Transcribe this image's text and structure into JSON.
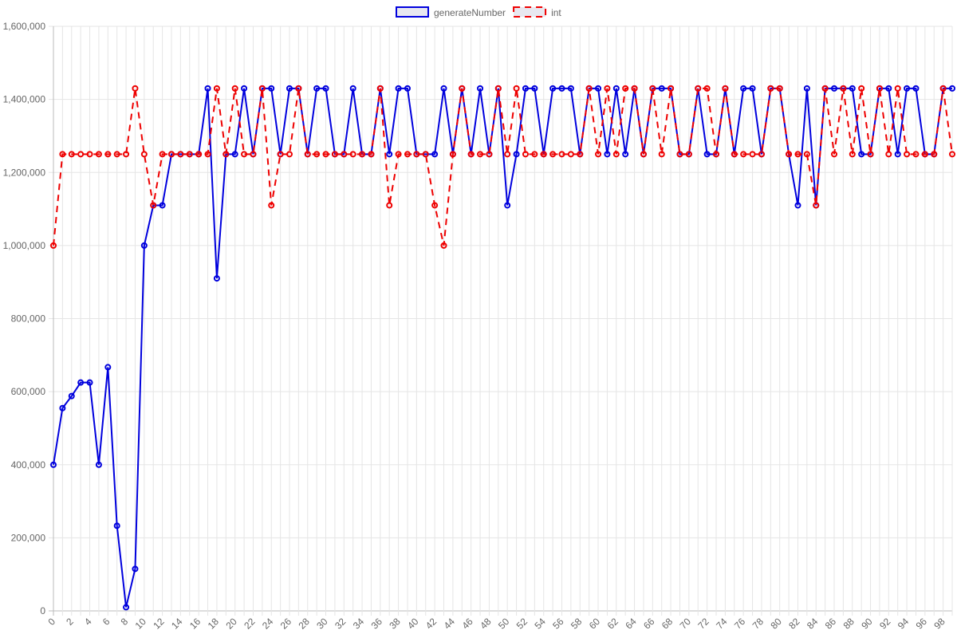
{
  "chart_data": {
    "type": "line",
    "categories": [
      "0",
      null,
      "2",
      null,
      "4",
      null,
      "6",
      null,
      "8",
      null,
      "10",
      null,
      "12",
      null,
      "14",
      null,
      "16",
      null,
      "18",
      null,
      "20",
      null,
      "22",
      null,
      "24",
      null,
      "26",
      null,
      "28",
      null,
      "30",
      null,
      "32",
      null,
      "34",
      null,
      "36",
      null,
      "38",
      null,
      "40",
      null,
      "42",
      null,
      "44",
      null,
      "46",
      null,
      "48",
      null,
      "50",
      null,
      "52",
      null,
      "54",
      null,
      "56",
      null,
      "58",
      null,
      "60",
      null,
      "62",
      null,
      "64",
      null,
      "66",
      null,
      "68",
      null,
      "70",
      null,
      "72",
      null,
      "74",
      null,
      "76",
      null,
      "78",
      null,
      "80",
      null,
      "82",
      null,
      "84",
      null,
      "86",
      null,
      "88",
      null,
      "90",
      null,
      "92",
      null,
      "94",
      null,
      "96",
      null,
      "98",
      null
    ],
    "series": [
      {
        "name": "generateNumber",
        "color": "#0000dd",
        "dashed": false,
        "values": [
          400000,
          555000,
          588000,
          625000,
          625000,
          400000,
          667000,
          233000,
          10000,
          115000,
          1000000,
          1110000,
          1110000,
          1250000,
          1250000,
          1250000,
          1250000,
          1430000,
          910000,
          1250000,
          1250000,
          1430000,
          1250000,
          1430000,
          1430000,
          1250000,
          1430000,
          1430000,
          1250000,
          1430000,
          1430000,
          1250000,
          1250000,
          1430000,
          1250000,
          1250000,
          1430000,
          1250000,
          1430000,
          1430000,
          1250000,
          1250000,
          1250000,
          1430000,
          1250000,
          1430000,
          1250000,
          1430000,
          1250000,
          1430000,
          1110000,
          1250000,
          1430000,
          1430000,
          1250000,
          1430000,
          1430000,
          1430000,
          1250000,
          1430000,
          1430000,
          1250000,
          1430000,
          1250000,
          1430000,
          1250000,
          1430000,
          1430000,
          1430000,
          1250000,
          1250000,
          1430000,
          1250000,
          1250000,
          1430000,
          1250000,
          1430000,
          1430000,
          1250000,
          1430000,
          1430000,
          1250000,
          1110000,
          1430000,
          1110000,
          1430000,
          1430000,
          1430000,
          1430000,
          1250000,
          1250000,
          1430000,
          1430000,
          1250000,
          1430000,
          1430000,
          1250000,
          1250000,
          1430000,
          1430000
        ]
      },
      {
        "name": "int",
        "color": "#ee0000",
        "dashed": true,
        "values": [
          1000000,
          1250000,
          1250000,
          1250000,
          1250000,
          1250000,
          1250000,
          1250000,
          1250000,
          1430000,
          1250000,
          1110000,
          1250000,
          1250000,
          1250000,
          1250000,
          1250000,
          1250000,
          1430000,
          1250000,
          1430000,
          1250000,
          1250000,
          1430000,
          1110000,
          1250000,
          1250000,
          1430000,
          1250000,
          1250000,
          1250000,
          1250000,
          1250000,
          1250000,
          1250000,
          1250000,
          1430000,
          1110000,
          1250000,
          1250000,
          1250000,
          1250000,
          1110000,
          1000000,
          1250000,
          1430000,
          1250000,
          1250000,
          1250000,
          1430000,
          1250000,
          1430000,
          1250000,
          1250000,
          1250000,
          1250000,
          1250000,
          1250000,
          1250000,
          1430000,
          1250000,
          1430000,
          1250000,
          1430000,
          1430000,
          1250000,
          1430000,
          1250000,
          1430000,
          1250000,
          1250000,
          1430000,
          1430000,
          1250000,
          1430000,
          1250000,
          1250000,
          1250000,
          1250000,
          1430000,
          1430000,
          1250000,
          1250000,
          1250000,
          1110000,
          1430000,
          1250000,
          1430000,
          1250000,
          1430000,
          1250000,
          1430000,
          1250000,
          1430000,
          1250000,
          1250000,
          1250000,
          1250000,
          1430000,
          1250000
        ]
      }
    ],
    "ylim": [
      0,
      1600000
    ],
    "yticks": [
      0,
      {
        "value": 200000,
        "label": "200,000"
      },
      {
        "value": 400000,
        "label": "400,000"
      },
      {
        "value": 600000,
        "label": "600,000"
      },
      {
        "value": 800000,
        "label": "800,000"
      },
      {
        "value": 1000000,
        "label": "1,000,000"
      },
      {
        "value": 1200000,
        "label": "1,200,000"
      },
      {
        "value": 1400000,
        "label": "1,400,000"
      },
      {
        "value": 1600000,
        "label": "1,600,000"
      }
    ],
    "grid": true,
    "legend": "top"
  }
}
